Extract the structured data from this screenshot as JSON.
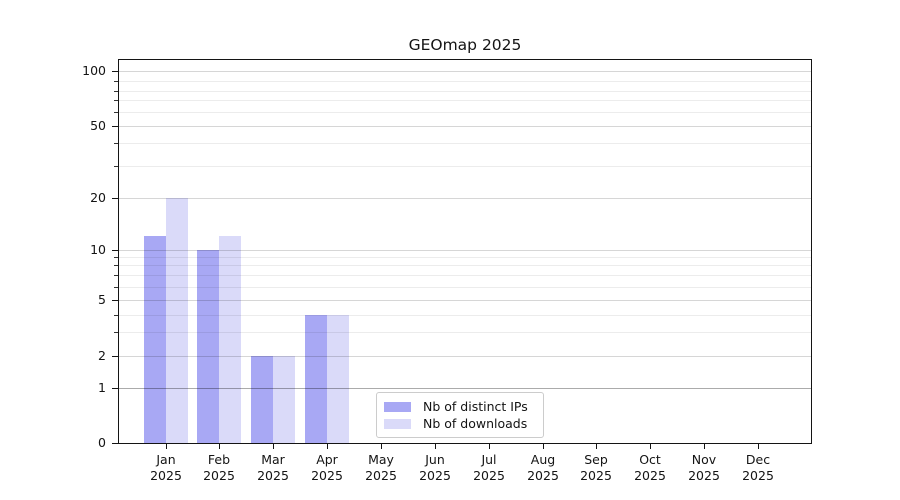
{
  "title": "GEOmap 2025",
  "legend": {
    "items": [
      {
        "label": "Nb of distinct IPs"
      },
      {
        "label": "Nb of downloads"
      }
    ]
  },
  "chart_data": {
    "type": "bar",
    "title": "GEOmap 2025",
    "xlabel": "",
    "ylabel": "",
    "yscale": "symlog",
    "ylim": [
      0,
      117
    ],
    "grid": true,
    "legend_position": "inside-bottom-center",
    "y_ticks": [
      100,
      50,
      20,
      10,
      5,
      2,
      1,
      0
    ],
    "y_tick_labels": [
      "100",
      "50",
      "20",
      "10",
      "5",
      "2",
      "1",
      "0"
    ],
    "y_minor_ticks": [
      90,
      80,
      70,
      60,
      40,
      30,
      9,
      8,
      7,
      6,
      4,
      3
    ],
    "categories": [
      "Jan 2025",
      "Feb 2025",
      "Mar 2025",
      "Apr 2025",
      "May 2025",
      "Jun 2025",
      "Jul 2025",
      "Aug 2025",
      "Sep 2025",
      "Oct 2025",
      "Nov 2025",
      "Dec 2025"
    ],
    "series": [
      {
        "name": "Nb of distinct IPs",
        "color": "#a8a8f4",
        "values": [
          12,
          10,
          2,
          4,
          0,
          0,
          0,
          0,
          0,
          0,
          0,
          0
        ]
      },
      {
        "name": "Nb of downloads",
        "color": "#dadaf9",
        "values": [
          20,
          12,
          2,
          4,
          0,
          0,
          0,
          0,
          0,
          0,
          0,
          0
        ]
      }
    ]
  }
}
